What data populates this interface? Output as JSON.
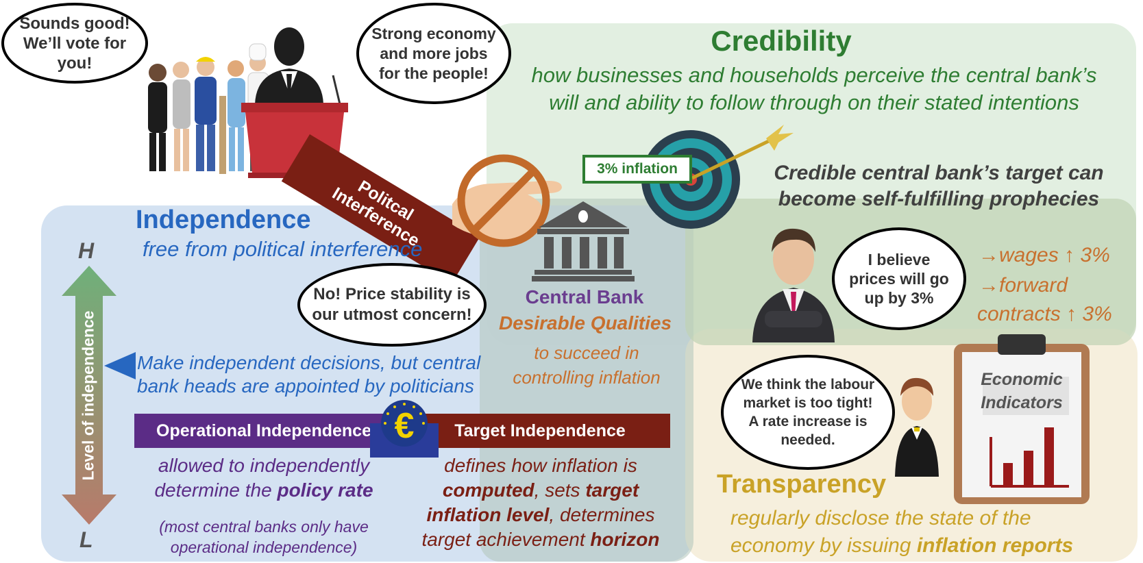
{
  "credibility": {
    "title": "Credibility",
    "line1": "how businesses and households perceive the central bank’s",
    "line2": "will and ability to follow through on their stated intentions",
    "target_label": "3% inflation",
    "self_fulfilling_1": "Credible central bank’s target can",
    "self_fulfilling_2": "become self-fulfilling prophecies",
    "belief": "I believe prices will go up by 3%",
    "wages_arrow": "→",
    "wages": "wages ↑ 3%",
    "forward_arrow": "→",
    "forward": "forward",
    "contracts": "contracts ↑ 3%"
  },
  "politics": {
    "voters_bubble": "Sounds good! We’ll vote for you!",
    "politician_bubble": "Strong economy and more jobs for the people!",
    "interference_1": "Politcal",
    "interference_2": "Interference"
  },
  "independence": {
    "title": "Independence",
    "subtitle": "free from political interference",
    "bank_bubble": "No! Price stability is our utmost concern!",
    "scale_high": "H",
    "scale_low": "L",
    "scale_label": "Level of independence",
    "middle_1": "Make independent decisions, but central",
    "middle_2": "bank heads are appointed by politicians",
    "operational": {
      "label": "Operational Independence",
      "desc_1": "allowed to independently",
      "desc_2_prefix": "determine the ",
      "desc_2_bold": "policy rate",
      "note_1": "(most central banks only have",
      "note_2": "operational independence)"
    },
    "target": {
      "label": "Target Independence",
      "desc_1": "defines how inflation is",
      "desc_2_bold": "computed",
      "desc_2_mid": ", sets ",
      "desc_2_bold2": "target",
      "desc_3_bold": "inflation level",
      "desc_3_rest": ", determines",
      "desc_4_prefix": "target achievement ",
      "desc_4_bold": "horizon"
    }
  },
  "central_bank": {
    "name": "Central Bank",
    "qualities": "Desirable Qualities",
    "purpose_1": "to succeed in",
    "purpose_2": "controlling inflation",
    "euro_symbol": "€"
  },
  "transparency": {
    "title": "Transparency",
    "labour_bubble": "We think the labour market is too tight! A rate increase is needed.",
    "clipboard_1": "Economic",
    "clipboard_2": "Indicators",
    "desc_1": "regularly disclose the state of the",
    "desc_2_prefix": "economy by issuing ",
    "desc_2_bold": "inflation reports"
  },
  "colors": {
    "green": "#2e7d32",
    "blue": "#2767c0",
    "purple": "#6a3d8f",
    "maroon": "#7a1f14",
    "orange": "#c8702e",
    "gold": "#c9a227"
  },
  "icons": [
    "voters-icon",
    "politician-icon",
    "podium-icon",
    "hand-icon",
    "prohibited-icon",
    "bank-building-icon",
    "target-icon",
    "arrow-icon",
    "businessman-icon",
    "economist-icon",
    "clipboard-icon",
    "bar-chart-icon",
    "euro-icon"
  ]
}
